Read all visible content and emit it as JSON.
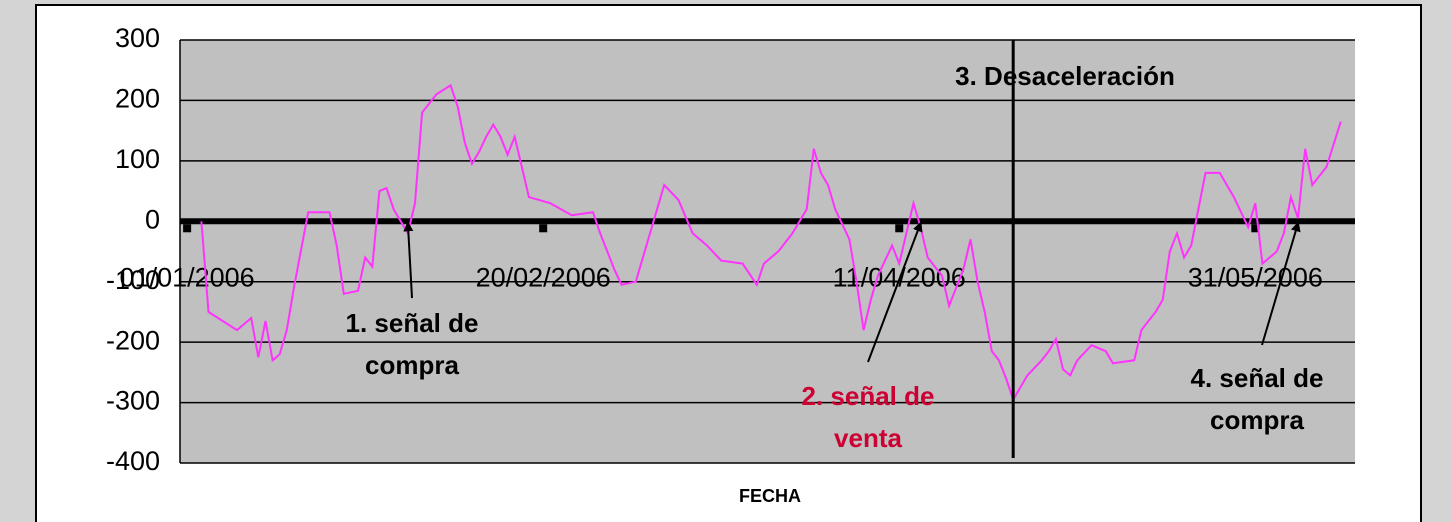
{
  "chart_data": {
    "type": "line",
    "x_label": "FECHA",
    "color": "#ff33ff",
    "x": [
      "2006-01-03",
      "2006-01-04",
      "2006-01-06",
      "2006-01-08",
      "2006-01-10",
      "2006-01-11",
      "2006-01-12",
      "2006-01-13",
      "2006-01-14",
      "2006-01-15",
      "2006-01-16",
      "2006-01-18",
      "2006-01-21",
      "2006-01-22",
      "2006-01-23",
      "2006-01-25",
      "2006-01-26",
      "2006-01-27",
      "2006-01-28",
      "2006-01-29",
      "2006-01-30",
      "2006-02-01",
      "2006-02-02",
      "2006-02-03",
      "2006-02-05",
      "2006-02-07",
      "2006-02-08",
      "2006-02-09",
      "2006-02-10",
      "2006-02-11",
      "2006-02-12",
      "2006-02-13",
      "2006-02-14",
      "2006-02-15",
      "2006-02-16",
      "2006-02-17",
      "2006-02-18",
      "2006-02-21",
      "2006-02-24",
      "2006-02-27",
      "2006-02-28",
      "2006-03-02",
      "2006-03-03",
      "2006-03-05",
      "2006-03-06",
      "2006-03-08",
      "2006-03-09",
      "2006-03-11",
      "2006-03-13",
      "2006-03-15",
      "2006-03-17",
      "2006-03-20",
      "2006-03-22",
      "2006-03-23",
      "2006-03-25",
      "2006-03-27",
      "2006-03-29",
      "2006-03-30",
      "2006-03-31",
      "2006-04-01",
      "2006-04-02",
      "2006-04-04",
      "2006-04-05",
      "2006-04-06",
      "2006-04-07",
      "2006-04-08",
      "2006-04-10",
      "2006-04-11",
      "2006-04-13",
      "2006-04-14",
      "2006-04-15",
      "2006-04-17",
      "2006-04-18",
      "2006-04-20",
      "2006-04-21",
      "2006-04-22",
      "2006-04-23",
      "2006-04-24",
      "2006-04-25",
      "2006-04-26",
      "2006-04-27",
      "2006-04-29",
      "2006-05-01",
      "2006-05-02",
      "2006-05-03",
      "2006-05-04",
      "2006-05-05",
      "2006-05-06",
      "2006-05-08",
      "2006-05-10",
      "2006-05-11",
      "2006-05-14",
      "2006-05-15",
      "2006-05-17",
      "2006-05-18",
      "2006-05-19",
      "2006-05-20",
      "2006-05-21",
      "2006-05-22",
      "2006-05-24",
      "2006-05-26",
      "2006-05-28",
      "2006-05-30",
      "2006-05-31",
      "2006-06-01",
      "2006-06-03",
      "2006-06-04",
      "2006-06-05",
      "2006-06-06",
      "2006-06-07",
      "2006-06-08",
      "2006-06-10",
      "2006-06-12"
    ],
    "values": [
      0,
      -150,
      -165,
      -180,
      -160,
      -225,
      -165,
      -230,
      -220,
      -180,
      -110,
      15,
      15,
      -40,
      -120,
      -115,
      -60,
      -75,
      50,
      55,
      20,
      -20,
      30,
      180,
      210,
      225,
      190,
      130,
      95,
      115,
      140,
      160,
      140,
      110,
      140,
      90,
      40,
      30,
      10,
      15,
      -20,
      -80,
      -105,
      -100,
      -60,
      20,
      60,
      35,
      -20,
      -40,
      -65,
      -70,
      -105,
      -70,
      -50,
      -20,
      20,
      120,
      80,
      60,
      20,
      -30,
      -100,
      -180,
      -130,
      -90,
      -40,
      -70,
      30,
      -10,
      -60,
      -90,
      -140,
      -80,
      -30,
      -100,
      -150,
      -215,
      -230,
      -260,
      -295,
      -255,
      -230,
      -215,
      -195,
      -245,
      -255,
      -230,
      -205,
      -215,
      -235,
      -230,
      -180,
      -150,
      -130,
      -50,
      -20,
      -60,
      -40,
      80,
      80,
      40,
      -10,
      30,
      -70,
      -50,
      -20,
      40,
      5,
      120,
      60,
      90,
      165
    ],
    "xlim": [
      "2005-12-31",
      "2006-06-14"
    ],
    "xticks": [
      {
        "value": "2006-01-01",
        "label": "01/01/2006"
      },
      {
        "value": "2006-02-20",
        "label": "20/02/2006"
      },
      {
        "value": "2006-04-11",
        "label": "11/04/2006"
      },
      {
        "value": "2006-05-31",
        "label": "31/05/2006"
      }
    ],
    "ylim": [
      -400,
      300
    ],
    "yticks": [
      -400,
      -300,
      -200,
      -100,
      0,
      100,
      200,
      300
    ],
    "grid": true,
    "annotations": [
      {
        "text": [
          "1. señal de",
          "compra"
        ],
        "xy": [
          "2006-02-01",
          0
        ],
        "color": "#000000"
      },
      {
        "text": [
          "2. señal de",
          "venta"
        ],
        "xy": [
          "2006-04-14",
          0
        ],
        "color": "#cc0033"
      },
      {
        "text": [
          "3. Desaceleración"
        ],
        "x": "2006-04-27",
        "color": "#000000"
      },
      {
        "text": [
          "4. señal de",
          "compra"
        ],
        "xy": [
          "2006-06-06",
          0
        ],
        "color": "#000000"
      }
    ]
  }
}
